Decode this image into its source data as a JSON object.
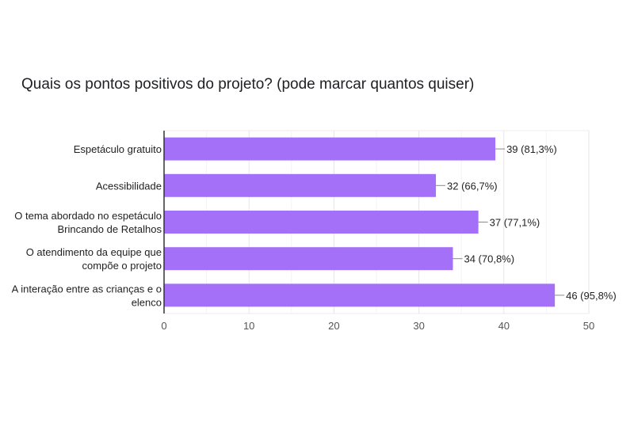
{
  "title": "Quais os pontos positivos do projeto? (pode marcar quantos quiser)",
  "colors": {
    "bar": "#a370f7",
    "grid": "#eeeeee",
    "axis": "#333333"
  },
  "chart_data": {
    "type": "bar",
    "orientation": "horizontal",
    "title": "Quais os pontos positivos do projeto? (pode marcar quantos quiser)",
    "categories": [
      [
        "Espetáculo gratuito"
      ],
      [
        "Acessibilidade"
      ],
      [
        "O tema abordado no espetáculo",
        "Brincando de Retalhos"
      ],
      [
        "O atendimento da equipe que",
        "compõe o projeto"
      ],
      [
        "A interação entre as crianças e o",
        "elenco"
      ]
    ],
    "values": [
      39,
      32,
      37,
      34,
      46
    ],
    "data_labels": [
      "39 (81,3%)",
      "32 (66,7%)",
      "37 (77,1%)",
      "34 (70,8%)",
      "46 (95,8%)"
    ],
    "xlim": [
      0,
      50
    ],
    "xticks": [
      0,
      10,
      20,
      30,
      40,
      50
    ],
    "xlabel": "",
    "ylabel": "",
    "grid": true,
    "legend": "none"
  }
}
